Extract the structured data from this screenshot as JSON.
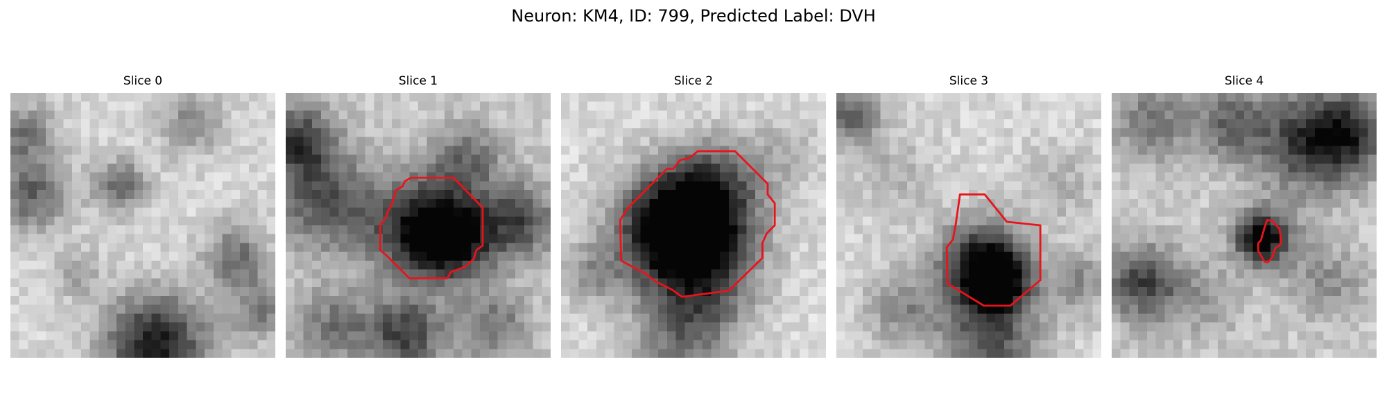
{
  "figure": {
    "title": "Neuron: KM4, ID: 799, Predicted Label: DVH"
  },
  "colors": {
    "contour": "#e8141c",
    "background": "#ffffff"
  },
  "slices": [
    {
      "label": "Slice 0",
      "has_contour": false
    },
    {
      "label": "Slice 1",
      "has_contour": true
    },
    {
      "label": "Slice 2",
      "has_contour": true
    },
    {
      "label": "Slice 3",
      "has_contour": true
    },
    {
      "label": "Slice 4",
      "has_contour": true
    }
  ]
}
